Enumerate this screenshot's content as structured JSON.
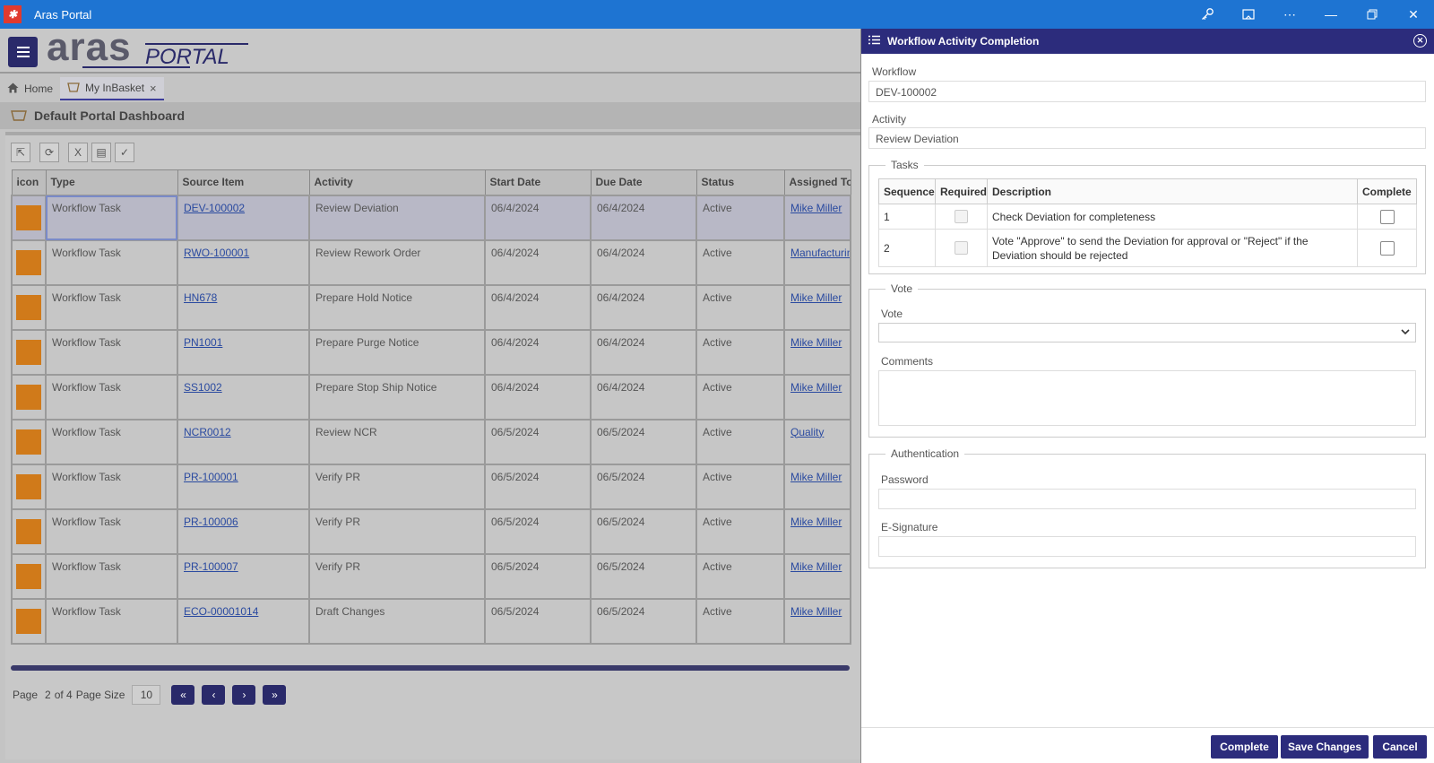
{
  "window": {
    "title": "Aras Portal"
  },
  "header": {
    "logo_main": "aras",
    "logo_sub": "PORTAL"
  },
  "tabs": [
    {
      "label": "Home"
    },
    {
      "label": "My InBasket"
    }
  ],
  "dashboard": {
    "title": "Default Portal Dashboard"
  },
  "grid": {
    "columns": [
      "icon",
      "Type",
      "Source Item",
      "Activity",
      "Start Date",
      "Due Date",
      "Status",
      "Assigned To"
    ],
    "rows": [
      {
        "type": "Workflow Task",
        "source": "DEV-100002",
        "activity": "Review Deviation",
        "start": "06/4/2024",
        "due": "06/4/2024",
        "status": "Active",
        "assigned": "Mike Miller"
      },
      {
        "type": "Workflow Task",
        "source": "RWO-100001",
        "activity": "Review Rework Order",
        "start": "06/4/2024",
        "due": "06/4/2024",
        "status": "Active",
        "assigned": "Manufacturing"
      },
      {
        "type": "Workflow Task",
        "source": "HN678",
        "activity": "Prepare Hold Notice",
        "start": "06/4/2024",
        "due": "06/4/2024",
        "status": "Active",
        "assigned": "Mike Miller"
      },
      {
        "type": "Workflow Task",
        "source": "PN1001",
        "activity": "Prepare Purge Notice",
        "start": "06/4/2024",
        "due": "06/4/2024",
        "status": "Active",
        "assigned": "Mike Miller"
      },
      {
        "type": "Workflow Task",
        "source": "SS1002",
        "activity": "Prepare Stop Ship Notice",
        "start": "06/4/2024",
        "due": "06/4/2024",
        "status": "Active",
        "assigned": "Mike Miller"
      },
      {
        "type": "Workflow Task",
        "source": "NCR0012",
        "activity": "Review NCR",
        "start": "06/5/2024",
        "due": "06/5/2024",
        "status": "Active",
        "assigned": "Quality"
      },
      {
        "type": "Workflow Task",
        "source": "PR-100001",
        "activity": "Verify PR",
        "start": "06/5/2024",
        "due": "06/5/2024",
        "status": "Active",
        "assigned": "Mike Miller"
      },
      {
        "type": "Workflow Task",
        "source": "PR-100006",
        "activity": "Verify PR",
        "start": "06/5/2024",
        "due": "06/5/2024",
        "status": "Active",
        "assigned": "Mike Miller"
      },
      {
        "type": "Workflow Task",
        "source": "PR-100007",
        "activity": "Verify PR",
        "start": "06/5/2024",
        "due": "06/5/2024",
        "status": "Active",
        "assigned": "Mike Miller"
      },
      {
        "type": "Workflow Task",
        "source": "ECO-00001014",
        "activity": "Draft Changes",
        "start": "06/5/2024",
        "due": "06/5/2024",
        "status": "Active",
        "assigned": "Mike Miller"
      }
    ]
  },
  "pager": {
    "page_label": "Page",
    "page": "2",
    "of_label": "of 4",
    "size_label": "Page Size",
    "size": "10"
  },
  "dialog": {
    "title": "Workflow Activity Completion",
    "workflow_label": "Workflow",
    "workflow_value": "DEV-100002",
    "activity_label": "Activity",
    "activity_value": "Review Deviation",
    "tasks_legend": "Tasks",
    "tasks_columns": [
      "Sequence",
      "Required",
      "Description",
      "Complete"
    ],
    "tasks": [
      {
        "seq": "1",
        "desc": "Check Deviation for completeness"
      },
      {
        "seq": "2",
        "desc": "Vote \"Approve\" to send the Deviation for approval or \"Reject\" if the Deviation should be rejected"
      }
    ],
    "vote_legend": "Vote",
    "vote_label": "Vote",
    "vote_value": "",
    "comments_label": "Comments",
    "auth_legend": "Authentication",
    "password_label": "Password",
    "esig_label": "E-Signature",
    "buttons": {
      "complete": "Complete",
      "save": "Save Changes",
      "cancel": "Cancel"
    }
  },
  "colors": {
    "titlebar": "#1e74d2",
    "dialog_header": "#2c2c7c",
    "task_icon": "#d07a1a",
    "link": "#2a4aa0"
  }
}
